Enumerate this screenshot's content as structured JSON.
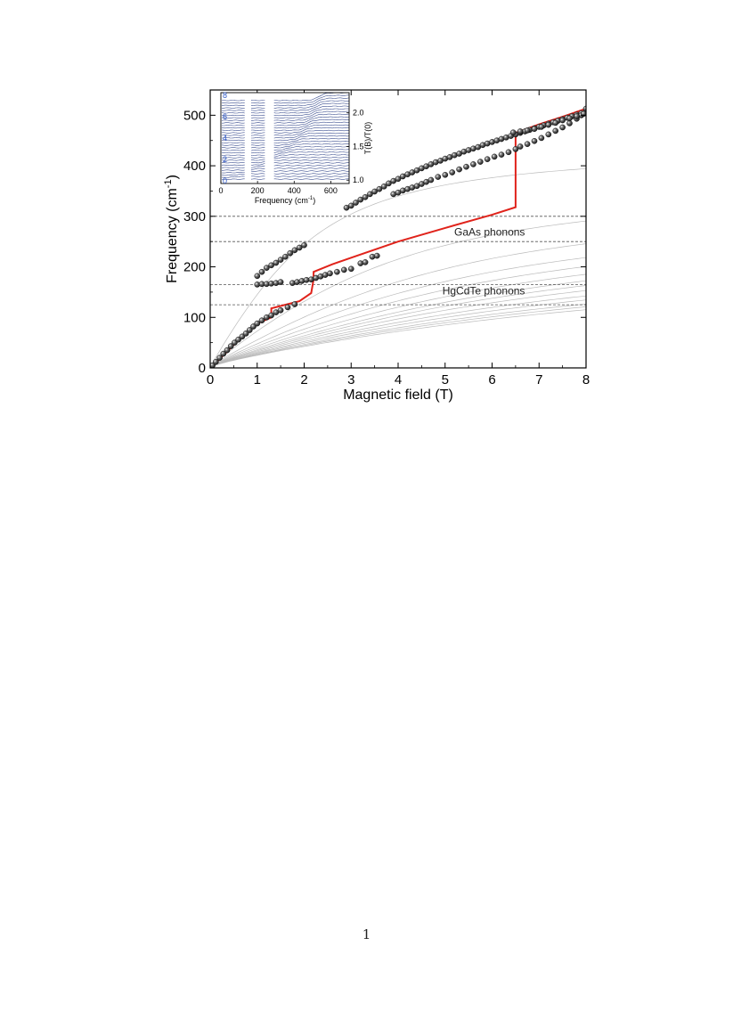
{
  "page": {
    "page_number": "1"
  },
  "chart_data": [
    {
      "type": "scatter",
      "title": "",
      "xlabel": "Magnetic field (T)",
      "ylabel": "Frequency (cm",
      "ylabel_sup": "-1",
      "ylabel_close": ")",
      "xlim": [
        0,
        8
      ],
      "ylim": [
        0,
        550
      ],
      "xticks": [
        0,
        1,
        2,
        3,
        4,
        5,
        6,
        7,
        8
      ],
      "yticks": [
        0,
        100,
        200,
        300,
        400,
        500
      ],
      "colors": {
        "points": "#111111",
        "red_line": "#e0231b",
        "fan_lines": "#bbbbbb",
        "phonon_lines": "#555555"
      },
      "annotations": [
        {
          "text": "GaAs phonons",
          "x": 6.7,
          "y": 262
        },
        {
          "text": "HgCdTe phonons",
          "x": 6.7,
          "y": 145
        }
      ],
      "phonon_lines": [
        {
          "group": "GaAs phonons",
          "y": 300
        },
        {
          "group": "GaAs phonons",
          "y": 250
        },
        {
          "group": "HgCdTe phonons",
          "y": 165
        },
        {
          "group": "HgCdTe phonons",
          "y": 125
        }
      ],
      "fan_lines": [
        {
          "a": 142,
          "saturation": 380
        },
        {
          "a": 62,
          "saturation": 300
        },
        {
          "a": 44,
          "saturation": 265
        },
        {
          "a": 36,
          "saturation": 240
        },
        {
          "a": 31,
          "saturation": 225
        },
        {
          "a": 27,
          "saturation": 212
        },
        {
          "a": 24,
          "saturation": 200
        },
        {
          "a": 22,
          "saturation": 190
        },
        {
          "a": 20,
          "saturation": 178
        },
        {
          "a": 18,
          "saturation": 165
        },
        {
          "a": 16.5,
          "saturation": 155
        },
        {
          "a": 15,
          "saturation": 145
        },
        {
          "a": 14,
          "saturation": 138
        },
        {
          "a": 13,
          "saturation": 130
        }
      ],
      "series": [
        {
          "values": [
            [
              0.05,
              5
            ],
            [
              0.12,
              12
            ],
            [
              0.2,
              20
            ],
            [
              0.28,
              28
            ],
            [
              0.36,
              35
            ],
            [
              0.44,
              43
            ],
            [
              0.52,
              50
            ],
            [
              0.6,
              56
            ],
            [
              0.68,
              62
            ],
            [
              0.76,
              68
            ],
            [
              0.84,
              75
            ],
            [
              0.92,
              82
            ],
            [
              1.0,
              88
            ],
            [
              1.1,
              94
            ],
            [
              1.2,
              100
            ],
            [
              1.3,
              104
            ],
            [
              1.4,
              110
            ],
            [
              1.5,
              114
            ],
            [
              1.65,
              120
            ],
            [
              1.8,
              126
            ],
            [
              1.0,
              165
            ],
            [
              1.1,
              166
            ],
            [
              1.2,
              166
            ],
            [
              1.3,
              167
            ],
            [
              1.4,
              168
            ],
            [
              1.5,
              170
            ],
            [
              1.75,
              168
            ],
            [
              1.85,
              170
            ],
            [
              1.95,
              172
            ],
            [
              2.05,
              174
            ],
            [
              2.15,
              175
            ],
            [
              2.25,
              178
            ],
            [
              2.35,
              181
            ],
            [
              2.45,
              184
            ],
            [
              2.55,
              187
            ],
            [
              2.7,
              190
            ],
            [
              2.85,
              194
            ],
            [
              3.0,
              196
            ],
            [
              3.2,
              207
            ],
            [
              3.3,
              209
            ],
            [
              3.45,
              220
            ],
            [
              3.55,
              222
            ],
            [
              1.0,
              182
            ],
            [
              1.1,
              190
            ],
            [
              1.2,
              198
            ],
            [
              1.3,
              203
            ],
            [
              1.4,
              208
            ],
            [
              1.5,
              214
            ],
            [
              1.6,
              220
            ],
            [
              1.7,
              227
            ],
            [
              1.8,
              233
            ],
            [
              1.9,
              238
            ],
            [
              2.0,
              243
            ],
            [
              2.9,
              317
            ],
            [
              3.0,
              321
            ],
            [
              3.1,
              327
            ],
            [
              3.2,
              333
            ],
            [
              3.3,
              338
            ],
            [
              3.4,
              344
            ],
            [
              3.5,
              349
            ],
            [
              3.6,
              354
            ],
            [
              3.7,
              359
            ],
            [
              3.8,
              365
            ],
            [
              3.9,
              370
            ],
            [
              4.0,
              374
            ],
            [
              4.1,
              379
            ],
            [
              4.2,
              383
            ],
            [
              4.3,
              387
            ],
            [
              4.4,
              391
            ],
            [
              4.5,
              395
            ],
            [
              4.6,
              399
            ],
            [
              4.7,
              403
            ],
            [
              4.8,
              407
            ],
            [
              4.9,
              410
            ],
            [
              5.0,
              414
            ],
            [
              5.1,
              417
            ],
            [
              5.2,
              421
            ],
            [
              5.3,
              424
            ],
            [
              5.4,
              428
            ],
            [
              5.5,
              431
            ],
            [
              5.6,
              434
            ],
            [
              5.7,
              437
            ],
            [
              5.8,
              441
            ],
            [
              5.9,
              444
            ],
            [
              6.0,
              447
            ],
            [
              6.1,
              450
            ],
            [
              6.2,
              453
            ],
            [
              6.3,
              456
            ],
            [
              6.4,
              459
            ],
            [
              6.5,
              462
            ],
            [
              6.6,
              465
            ],
            [
              6.7,
              468
            ],
            [
              6.8,
              471
            ],
            [
              6.9,
              474
            ],
            [
              7.0,
              477
            ],
            [
              7.1,
              480
            ],
            [
              7.2,
              483
            ],
            [
              7.3,
              486
            ],
            [
              7.4,
              489
            ],
            [
              7.5,
              492
            ],
            [
              7.6,
              495
            ],
            [
              7.7,
              498
            ],
            [
              7.8,
              501
            ],
            [
              7.9,
              504
            ],
            [
              8.0,
              507
            ],
            [
              3.9,
              344
            ],
            [
              4.0,
              347
            ],
            [
              4.1,
              351
            ],
            [
              4.2,
              354
            ],
            [
              4.3,
              357
            ],
            [
              4.4,
              360
            ],
            [
              4.5,
              364
            ],
            [
              4.6,
              368
            ],
            [
              4.7,
              372
            ],
            [
              4.85,
              378
            ],
            [
              5.0,
              382
            ],
            [
              5.15,
              387
            ],
            [
              5.3,
              393
            ],
            [
              5.45,
              398
            ],
            [
              5.6,
              403
            ],
            [
              5.75,
              408
            ],
            [
              5.9,
              413
            ],
            [
              6.05,
              418
            ],
            [
              6.2,
              422
            ],
            [
              6.35,
              427
            ],
            [
              6.5,
              433
            ],
            [
              6.6,
              438
            ],
            [
              6.75,
              443
            ],
            [
              6.9,
              449
            ],
            [
              7.05,
              455
            ],
            [
              7.2,
              462
            ],
            [
              7.35,
              469
            ],
            [
              7.5,
              476
            ],
            [
              7.65,
              484
            ],
            [
              7.8,
              493
            ],
            [
              7.9,
              500
            ],
            [
              8.0,
              513
            ],
            [
              6.45,
              466
            ],
            [
              6.6,
              468
            ],
            [
              6.75,
              470
            ],
            [
              6.9,
              473
            ],
            [
              7.05,
              477
            ],
            [
              7.2,
              481
            ],
            [
              7.35,
              485
            ],
            [
              7.5,
              490
            ],
            [
              7.65,
              494
            ],
            [
              7.8,
              498
            ],
            [
              7.95,
              503
            ]
          ]
        },
        {
          "type": "line",
          "values": [
            [
              0,
              0
            ],
            [
              0.2,
              18
            ],
            [
              0.4,
              36
            ],
            [
              0.6,
              55
            ],
            [
              0.8,
              72
            ],
            [
              1.0,
              88
            ],
            [
              1.3,
              100
            ],
            [
              1.3,
              118
            ],
            [
              1.6,
              125
            ],
            [
              1.9,
              132
            ],
            [
              2.15,
              148
            ],
            [
              2.2,
              175
            ],
            [
              2.2,
              190
            ],
            [
              2.6,
              205
            ],
            [
              3.0,
              218
            ],
            [
              4.0,
              250
            ],
            [
              5.0,
              277
            ],
            [
              6.0,
              303
            ],
            [
              6.5,
              318
            ],
            [
              6.5,
              465
            ],
            [
              7.0,
              482
            ],
            [
              7.5,
              497
            ],
            [
              8.0,
              513
            ]
          ]
        }
      ]
    },
    {
      "type": "line",
      "title": "",
      "xlabel": "Frequency (cm",
      "xlabel_sup": "-1",
      "xlabel_close": ")",
      "ylabel_right": "T(B)/T(0)",
      "xlim": [
        0,
        700
      ],
      "ylim_right": [
        0.95,
        2.3
      ],
      "xticks": [
        0,
        200,
        400,
        600
      ],
      "yticks_right": [
        1.0,
        1.5,
        2.0
      ],
      "yticks_right_labels": [
        "1.0",
        "1.5",
        "2.0"
      ],
      "left_tick_labels": [
        "0",
        "2",
        "4",
        "6",
        "8"
      ],
      "left_tick_color": "#2f59c9",
      "colors": {
        "traces": "#3a4d8f",
        "gaps": "#ffffff"
      },
      "gap_ranges": [
        [
          130,
          165
        ],
        [
          240,
          290
        ]
      ],
      "traces_summary": "stacked transmission spectra for B from 0 to 8 T"
    }
  ]
}
